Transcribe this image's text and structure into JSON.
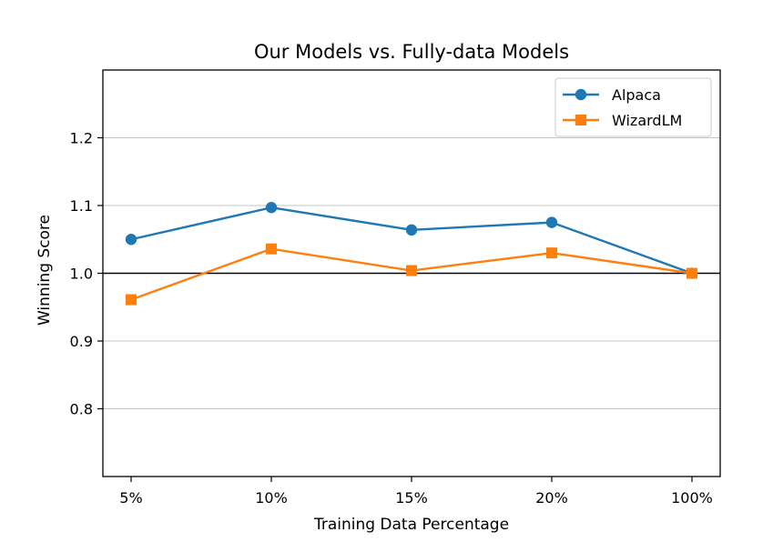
{
  "chart_data": {
    "type": "line",
    "title": "Our Models vs. Fully-data Models",
    "xlabel": "Training Data Percentage",
    "ylabel": "Winning Score",
    "categories": [
      "5%",
      "10%",
      "15%",
      "20%",
      "100%"
    ],
    "ylim": [
      0.7,
      1.3
    ],
    "yticks": [
      0.8,
      0.9,
      1.0,
      1.1,
      1.2
    ],
    "ytick_labels": [
      "0.8",
      "0.9",
      "1.0",
      "1.1",
      "1.2"
    ],
    "reference_line": 1.0,
    "grid": "horizontal",
    "legend_position": "top-right",
    "series": [
      {
        "name": "Alpaca",
        "marker": "circle",
        "color": "#1f77b4",
        "values": [
          1.05,
          1.097,
          1.064,
          1.075,
          1.0
        ]
      },
      {
        "name": "WizardLM",
        "marker": "square",
        "color": "#ff7f0e",
        "values": [
          0.961,
          1.036,
          1.004,
          1.03,
          1.0
        ]
      }
    ]
  }
}
